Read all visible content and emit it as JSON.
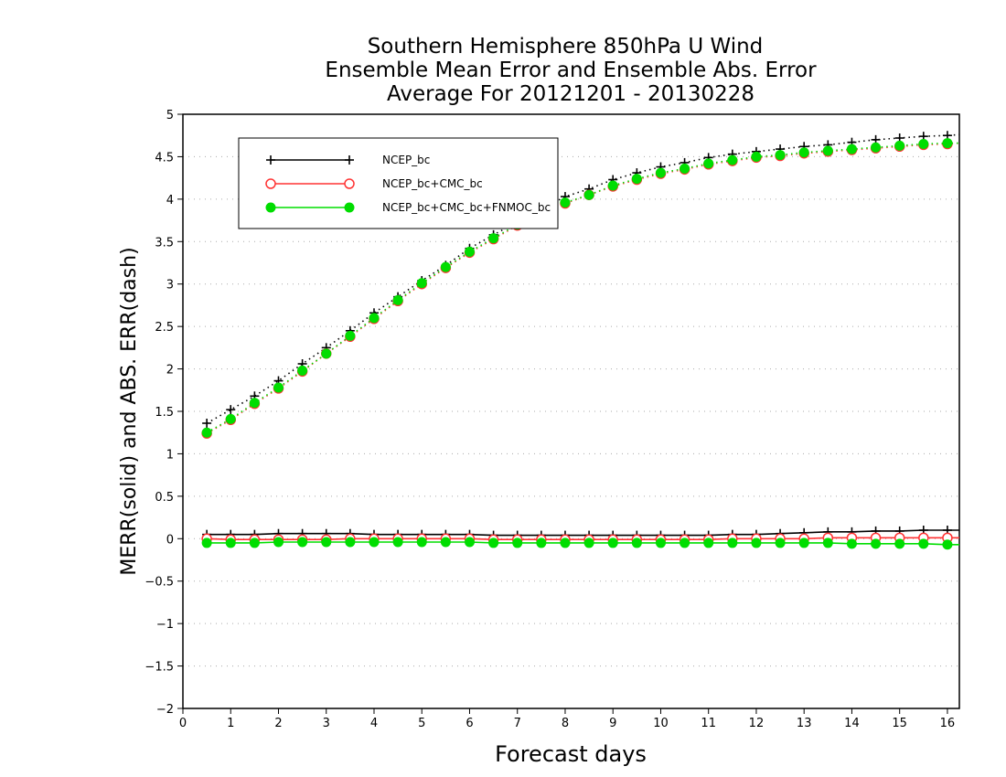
{
  "chart_data": {
    "type": "line",
    "title_lines": [
      "Southern Hemisphere 850hPa U Wind",
      "Ensemble Mean Error and Ensemble Abs. Error",
      "Average For 20121201 - 20130228"
    ],
    "xlabel": "Forecast days",
    "ylabel": "MERR(solid) and ABS. ERR(dash)",
    "xlim": [
      0,
      16.25
    ],
    "ylim": [
      -2,
      5
    ],
    "xticks": [
      0,
      1,
      2,
      3,
      4,
      5,
      6,
      7,
      8,
      9,
      10,
      11,
      12,
      13,
      14,
      15,
      16
    ],
    "yticks": [
      -2,
      -1.5,
      -1,
      -0.5,
      0,
      0.5,
      1,
      1.5,
      2,
      2.5,
      3,
      3.5,
      4,
      4.5,
      5
    ],
    "ytick_labels": [
      "−2",
      "−1.5",
      "−1",
      "−0.5",
      "0",
      "0.5",
      "1",
      "1.5",
      "2",
      "2.5",
      "3",
      "3.5",
      "4",
      "4.5",
      "5"
    ],
    "grid": "horizontal dotted",
    "legend_position": "top-left",
    "x": [
      0.5,
      1,
      1.5,
      2,
      2.5,
      3,
      3.5,
      4,
      4.5,
      5,
      5.5,
      6,
      6.5,
      7,
      7.5,
      8,
      8.5,
      9,
      9.5,
      10,
      10.5,
      11,
      11.5,
      12,
      12.5,
      13,
      13.5,
      14,
      14.5,
      15,
      15.5,
      16,
      16.25
    ],
    "series": [
      {
        "name": "NCEP_bc",
        "color": "#000000",
        "marker": "plus",
        "merr": [
          0.05,
          0.05,
          0.05,
          0.06,
          0.06,
          0.06,
          0.06,
          0.05,
          0.05,
          0.05,
          0.05,
          0.05,
          0.04,
          0.04,
          0.04,
          0.04,
          0.04,
          0.04,
          0.04,
          0.04,
          0.04,
          0.04,
          0.05,
          0.05,
          0.06,
          0.07,
          0.08,
          0.08,
          0.09,
          0.09,
          0.1,
          0.1,
          0.1
        ],
        "abs_err": [
          1.36,
          1.52,
          1.68,
          1.86,
          2.06,
          2.25,
          2.45,
          2.66,
          2.85,
          3.04,
          3.22,
          3.42,
          3.58,
          3.73,
          3.88,
          4.03,
          4.12,
          4.23,
          4.31,
          4.38,
          4.43,
          4.49,
          4.53,
          4.56,
          4.59,
          4.62,
          4.64,
          4.67,
          4.7,
          4.72,
          4.74,
          4.75,
          4.76
        ]
      },
      {
        "name": "NCEP_bc+CMC_bc",
        "color": "#ff3333",
        "marker": "open-circle",
        "merr": [
          0.0,
          -0.01,
          -0.01,
          -0.01,
          -0.01,
          -0.01,
          0.0,
          0.0,
          0.0,
          0.0,
          0.0,
          0.0,
          -0.01,
          -0.01,
          -0.01,
          -0.01,
          -0.01,
          -0.01,
          -0.01,
          -0.01,
          -0.01,
          -0.01,
          0.0,
          0.0,
          0.0,
          0.0,
          0.01,
          0.01,
          0.01,
          0.01,
          0.01,
          0.01,
          0.01
        ],
        "abs_err": [
          1.24,
          1.4,
          1.59,
          1.77,
          1.97,
          2.18,
          2.38,
          2.59,
          2.8,
          3.0,
          3.19,
          3.37,
          3.53,
          3.69,
          3.83,
          3.95,
          4.05,
          4.15,
          4.23,
          4.3,
          4.35,
          4.41,
          4.45,
          4.49,
          4.51,
          4.54,
          4.56,
          4.58,
          4.6,
          4.62,
          4.64,
          4.65,
          4.66
        ]
      },
      {
        "name": "NCEP_bc+CMC_bc+FNMOC_bc",
        "color": "#00dd00",
        "marker": "filled-circle",
        "merr": [
          -0.05,
          -0.05,
          -0.05,
          -0.04,
          -0.04,
          -0.04,
          -0.04,
          -0.04,
          -0.04,
          -0.04,
          -0.04,
          -0.04,
          -0.05,
          -0.05,
          -0.05,
          -0.05,
          -0.05,
          -0.05,
          -0.05,
          -0.05,
          -0.05,
          -0.05,
          -0.05,
          -0.05,
          -0.05,
          -0.05,
          -0.05,
          -0.06,
          -0.06,
          -0.06,
          -0.06,
          -0.07,
          -0.07
        ],
        "abs_err": [
          1.25,
          1.41,
          1.6,
          1.78,
          1.98,
          2.18,
          2.39,
          2.6,
          2.81,
          3.01,
          3.2,
          3.38,
          3.54,
          3.7,
          3.84,
          3.96,
          4.05,
          4.16,
          4.24,
          4.31,
          4.36,
          4.42,
          4.46,
          4.5,
          4.52,
          4.55,
          4.57,
          4.59,
          4.61,
          4.63,
          4.65,
          4.66,
          4.66
        ]
      }
    ]
  }
}
